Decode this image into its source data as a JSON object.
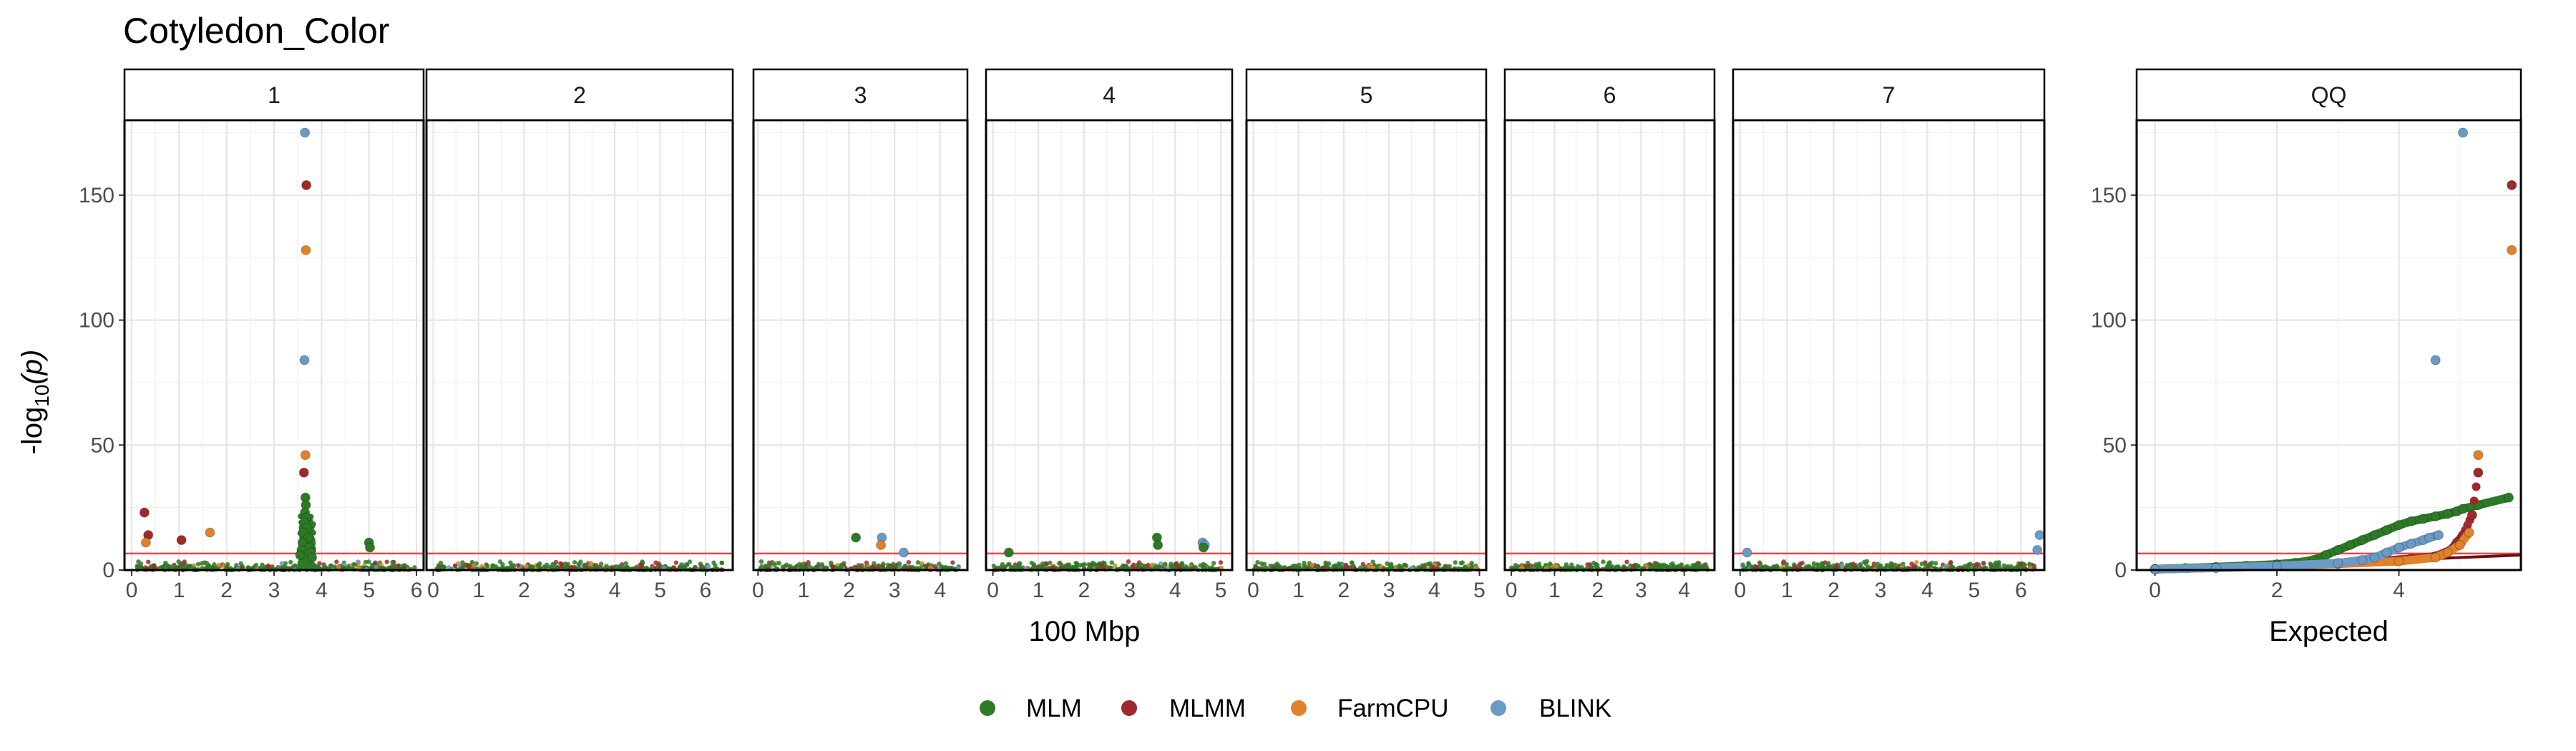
{
  "chart_data": {
    "type": "scatter",
    "title": "Cotyledon_Color",
    "ylabel_prefix": "-log",
    "ylabel_sub": "10",
    "ylabel_suffix": "(p)",
    "ylim": [
      0,
      180
    ],
    "yticks": [
      0,
      50,
      100,
      150
    ],
    "threshold": 6.6,
    "threshold_color": "#e8474b",
    "manhattan_xlabel": "100 Mbp",
    "qq_xlabel": "Expected",
    "grid": true,
    "legend_position": "bottom",
    "series": [
      {
        "name": "MLM",
        "color": "#2d7a26"
      },
      {
        "name": "MLMM",
        "color": "#9e2a2b"
      },
      {
        "name": "FarmCPU",
        "color": "#e0822b"
      },
      {
        "name": "BLINK",
        "color": "#6a9bc7"
      }
    ],
    "panels": [
      {
        "label": "1",
        "xlim": [
          -0.15,
          6.15
        ],
        "xticks": [
          "0",
          "1",
          "2",
          "3",
          "4",
          "5",
          "6"
        ],
        "points": [
          {
            "s": "BLINK",
            "x": 3.65,
            "y": 175
          },
          {
            "s": "MLMM",
            "x": 3.68,
            "y": 154
          },
          {
            "s": "FarmCPU",
            "x": 3.67,
            "y": 128
          },
          {
            "s": "BLINK",
            "x": 3.64,
            "y": 84
          },
          {
            "s": "FarmCPU",
            "x": 3.66,
            "y": 46
          },
          {
            "s": "MLMM",
            "x": 3.63,
            "y": 39
          },
          {
            "s": "MLM",
            "x": 3.66,
            "y": 29
          },
          {
            "s": "MLM",
            "x": 3.67,
            "y": 26
          },
          {
            "s": "MLM",
            "x": 3.65,
            "y": 23
          },
          {
            "s": "MLM",
            "x": 3.68,
            "y": 21
          },
          {
            "s": "MLM",
            "x": 3.64,
            "y": 19
          },
          {
            "s": "MLM",
            "x": 3.7,
            "y": 17
          },
          {
            "s": "MLM",
            "x": 3.62,
            "y": 15
          },
          {
            "s": "MLM",
            "x": 3.72,
            "y": 13
          },
          {
            "s": "MLM",
            "x": 3.6,
            "y": 11
          },
          {
            "s": "MLM",
            "x": 3.74,
            "y": 9
          },
          {
            "s": "MLM",
            "x": 3.58,
            "y": 8
          },
          {
            "s": "MLM",
            "x": 3.76,
            "y": 7
          },
          {
            "s": "MLM",
            "x": 3.55,
            "y": 6
          },
          {
            "s": "MLM",
            "x": 3.8,
            "y": 5
          },
          {
            "s": "MLMM",
            "x": 0.27,
            "y": 23
          },
          {
            "s": "MLMM",
            "x": 0.35,
            "y": 14
          },
          {
            "s": "FarmCPU",
            "x": 0.3,
            "y": 11
          },
          {
            "s": "MLMM",
            "x": 1.05,
            "y": 12
          },
          {
            "s": "FarmCPU",
            "x": 1.65,
            "y": 15
          },
          {
            "s": "MLM",
            "x": 5.0,
            "y": 11
          },
          {
            "s": "MLM",
            "x": 5.02,
            "y": 9
          }
        ]
      },
      {
        "label": "2",
        "xlim": [
          -0.15,
          6.6
        ],
        "xticks": [
          "0",
          "1",
          "2",
          "3",
          "4",
          "5",
          "6"
        ],
        "points": []
      },
      {
        "label": "3",
        "xlim": [
          -0.1,
          4.6
        ],
        "xticks": [
          "0",
          "1",
          "2",
          "3",
          "4"
        ],
        "points": [
          {
            "s": "MLM",
            "x": 2.15,
            "y": 13
          },
          {
            "s": "BLINK",
            "x": 2.72,
            "y": 13
          },
          {
            "s": "FarmCPU",
            "x": 2.7,
            "y": 10
          },
          {
            "s": "BLINK",
            "x": 3.2,
            "y": 7
          }
        ]
      },
      {
        "label": "4",
        "xlim": [
          -0.15,
          5.25
        ],
        "xticks": [
          "0",
          "1",
          "2",
          "3",
          "4",
          "5"
        ],
        "points": [
          {
            "s": "MLM",
            "x": 0.35,
            "y": 7
          },
          {
            "s": "MLM",
            "x": 3.6,
            "y": 13
          },
          {
            "s": "MLM",
            "x": 3.62,
            "y": 10
          },
          {
            "s": "BLINK",
            "x": 4.6,
            "y": 11
          },
          {
            "s": "BLINK",
            "x": 4.65,
            "y": 10
          },
          {
            "s": "MLM",
            "x": 4.62,
            "y": 9
          }
        ]
      },
      {
        "label": "5",
        "xlim": [
          -0.15,
          5.15
        ],
        "xticks": [
          "0",
          "1",
          "2",
          "3",
          "4",
          "5"
        ],
        "points": []
      },
      {
        "label": "6",
        "xlim": [
          -0.15,
          4.7
        ],
        "xticks": [
          "0",
          "1",
          "2",
          "3",
          "4"
        ],
        "points": []
      },
      {
        "label": "7",
        "xlim": [
          -0.15,
          6.5
        ],
        "xticks": [
          "0",
          "1",
          "2",
          "3",
          "4",
          "5",
          "6"
        ],
        "points": [
          {
            "s": "BLINK",
            "x": 0.15,
            "y": 7
          },
          {
            "s": "BLINK",
            "x": 6.4,
            "y": 14
          },
          {
            "s": "BLINK",
            "x": 6.35,
            "y": 8
          }
        ]
      }
    ],
    "qq": {
      "label": "QQ",
      "xlim": [
        -0.3,
        6.0
      ],
      "xticks": [
        0,
        2,
        4
      ],
      "expected_line_color": "#6b0f12",
      "series": [
        {
          "name": "MLM",
          "points": [
            [
              0,
              0.4
            ],
            [
              0.5,
              0.8
            ],
            [
              1.0,
              1.2
            ],
            [
              1.5,
              1.7
            ],
            [
              2.0,
              2.3
            ],
            [
              2.3,
              2.9
            ],
            [
              2.6,
              4
            ],
            [
              2.8,
              6
            ],
            [
              3.0,
              8
            ],
            [
              3.2,
              10
            ],
            [
              3.4,
              12
            ],
            [
              3.6,
              14
            ],
            [
              3.8,
              16
            ],
            [
              4.0,
              18
            ],
            [
              4.2,
              19.5
            ],
            [
              4.4,
              20.5
            ],
            [
              4.6,
              21.5
            ],
            [
              4.8,
              22.5
            ],
            [
              4.95,
              23.5
            ],
            [
              5.05,
              24.5
            ],
            [
              5.3,
              26
            ],
            [
              5.8,
              29
            ]
          ]
        },
        {
          "name": "MLMM",
          "points": [
            [
              0,
              0.3
            ],
            [
              1.0,
              0.9
            ],
            [
              2.0,
              1.6
            ],
            [
              3.0,
              2.6
            ],
            [
              3.6,
              3.5
            ],
            [
              4.2,
              4.5
            ],
            [
              4.6,
              5.5
            ],
            [
              4.85,
              8
            ],
            [
              4.95,
              11
            ],
            [
              5.05,
              14
            ],
            [
              5.2,
              22
            ],
            [
              5.3,
              39
            ],
            [
              5.85,
              154
            ]
          ]
        },
        {
          "name": "FarmCPU",
          "points": [
            [
              0,
              0.3
            ],
            [
              1.0,
              0.9
            ],
            [
              2.0,
              1.6
            ],
            [
              3.0,
              2.5
            ],
            [
              4.0,
              3.5
            ],
            [
              4.6,
              5
            ],
            [
              4.8,
              7
            ],
            [
              5.0,
              10
            ],
            [
              5.15,
              15
            ],
            [
              5.3,
              46
            ],
            [
              5.85,
              128
            ]
          ]
        },
        {
          "name": "BLINK",
          "points": [
            [
              0,
              0.3
            ],
            [
              1.0,
              0.9
            ],
            [
              2.0,
              1.6
            ],
            [
              3.0,
              2.8
            ],
            [
              3.4,
              4
            ],
            [
              3.6,
              5
            ],
            [
              3.8,
              7
            ],
            [
              4.0,
              9
            ],
            [
              4.2,
              10.5
            ],
            [
              4.4,
              12
            ],
            [
              4.5,
              13
            ],
            [
              4.65,
              14
            ],
            [
              4.6,
              84
            ],
            [
              5.05,
              175
            ]
          ]
        }
      ]
    }
  }
}
